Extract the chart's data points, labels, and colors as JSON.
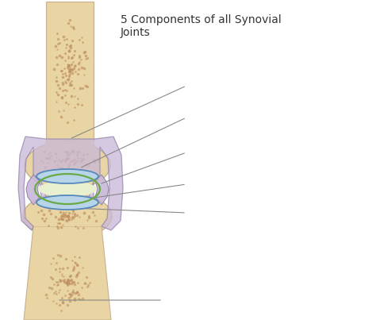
{
  "title": "5 Components of all Synovial\nJoints",
  "title_fontsize": 10,
  "title_color": "#333333",
  "bg_color": "#ffffff",
  "bone_color": "#e8d5a3",
  "spongy_color": "#c09060",
  "cartilage_color": "#b8d4e8",
  "capsule_color": "#c8b8d8",
  "green_outline": "#6aaa44",
  "blue_outline": "#5588bb",
  "joint_space_color": "#e8f0d0",
  "pointer_color": "#888888",
  "pointer_linewidth": 0.8
}
